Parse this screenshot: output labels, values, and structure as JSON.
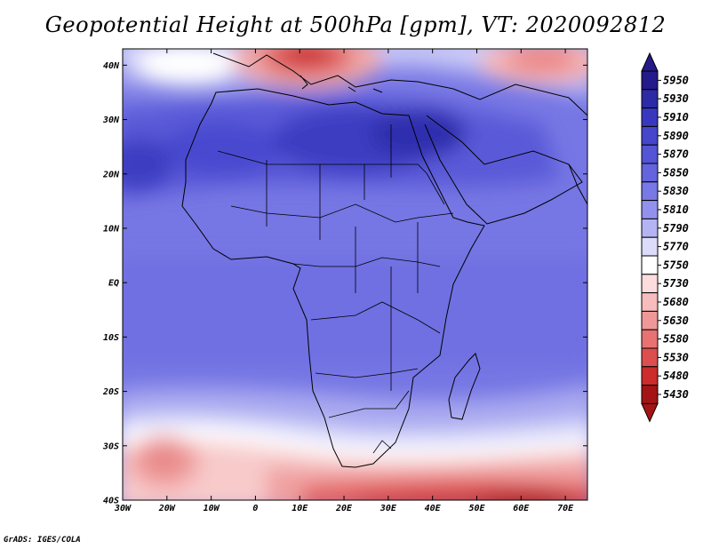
{
  "title": "Geopotential Height at 500hPa [gpm], VT: 2020092812",
  "credit": "GrADS: IGES/COLA",
  "map": {
    "lat_labels": [
      "40N",
      "30N",
      "20N",
      "10N",
      "EQ",
      "10S",
      "20S",
      "30S",
      "40S"
    ],
    "lon_labels": [
      "30W",
      "20W",
      "10W",
      "0",
      "10E",
      "20E",
      "30E",
      "40E",
      "50E",
      "60E",
      "70E"
    ],
    "lat_range": [
      -40,
      45
    ],
    "lon_range": [
      -30,
      75
    ]
  },
  "colorbar": {
    "levels": [
      "5950",
      "5930",
      "5910",
      "5890",
      "5870",
      "5850",
      "5830",
      "5810",
      "5790",
      "5770",
      "5750",
      "5730",
      "5680",
      "5630",
      "5580",
      "5530",
      "5480",
      "5430"
    ],
    "colors": [
      "#241a8a",
      "#2d2aa6",
      "#3838bf",
      "#4646cc",
      "#5454d6",
      "#6464de",
      "#7878e6",
      "#9292ee",
      "#b4b4f4",
      "#dcdcfa",
      "#ffffff",
      "#fcdcdc",
      "#f7bcbc",
      "#f09898",
      "#e87272",
      "#dd4e4e",
      "#cc2c2c",
      "#a51414"
    ]
  }
}
